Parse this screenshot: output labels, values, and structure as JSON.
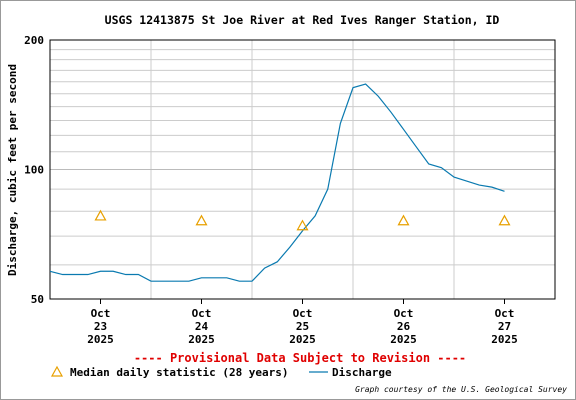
{
  "chart_data": {
    "type": "line",
    "title": "USGS 12413875 St Joe River at Red Ives Ranger Station, ID",
    "ylabel": "Discharge, cubic feet per second",
    "notice": "---- Provisional Data Subject to Revision ----",
    "credit": "Graph courtesy of the U.S. Geological Survey",
    "ylog": true,
    "ylim": [
      50,
      200
    ],
    "yticks": [
      50,
      100,
      200
    ],
    "yminor": [
      60,
      70,
      80,
      90,
      110,
      120,
      130,
      140,
      150,
      160,
      170,
      180,
      190
    ],
    "xlim": [
      "2025-10-23T00:00",
      "2025-10-28T00:00"
    ],
    "xticks": [
      {
        "value": "2025-10-23T12:00",
        "label": "Oct 23 2025"
      },
      {
        "value": "2025-10-24T12:00",
        "label": "Oct 24 2025"
      },
      {
        "value": "2025-10-25T12:00",
        "label": "Oct 25 2025"
      },
      {
        "value": "2025-10-26T12:00",
        "label": "Oct 26 2025"
      },
      {
        "value": "2025-10-27T12:00",
        "label": "Oct 27 2025"
      }
    ],
    "xgrid": [
      "2025-10-24T00:00",
      "2025-10-25T00:00",
      "2025-10-26T00:00",
      "2025-10-27T00:00"
    ],
    "series": [
      {
        "name": "Discharge",
        "color": "#0a7ab0",
        "x": [
          "2025-10-23T00:00",
          "2025-10-23T03:00",
          "2025-10-23T06:00",
          "2025-10-23T09:00",
          "2025-10-23T12:00",
          "2025-10-23T15:00",
          "2025-10-23T18:00",
          "2025-10-23T21:00",
          "2025-10-24T00:00",
          "2025-10-24T03:00",
          "2025-10-24T06:00",
          "2025-10-24T09:00",
          "2025-10-24T12:00",
          "2025-10-24T15:00",
          "2025-10-24T18:00",
          "2025-10-24T21:00",
          "2025-10-25T00:00",
          "2025-10-25T03:00",
          "2025-10-25T06:00",
          "2025-10-25T09:00",
          "2025-10-25T12:00",
          "2025-10-25T15:00",
          "2025-10-25T18:00",
          "2025-10-25T21:00",
          "2025-10-26T00:00",
          "2025-10-26T03:00",
          "2025-10-26T06:00",
          "2025-10-26T09:00",
          "2025-10-26T12:00",
          "2025-10-26T15:00",
          "2025-10-26T18:00",
          "2025-10-26T21:00",
          "2025-10-27T00:00",
          "2025-10-27T03:00",
          "2025-10-27T06:00",
          "2025-10-27T09:00",
          "2025-10-27T12:00"
        ],
        "values": [
          58,
          57,
          57,
          57,
          58,
          58,
          57,
          57,
          55,
          55,
          55,
          55,
          56,
          56,
          56,
          55,
          55,
          59,
          61,
          66,
          72,
          78,
          90,
          128,
          155,
          158,
          148,
          136,
          124,
          113,
          103,
          101,
          96,
          94,
          92,
          91,
          89
        ]
      },
      {
        "name": "Median daily statistic (28 years)",
        "color": "#e8a000",
        "marker": "triangle",
        "x": [
          "2025-10-23T12:00",
          "2025-10-24T12:00",
          "2025-10-25T12:00",
          "2025-10-26T12:00",
          "2025-10-27T12:00"
        ],
        "values": [
          78,
          76,
          74,
          76,
          76
        ]
      }
    ]
  }
}
